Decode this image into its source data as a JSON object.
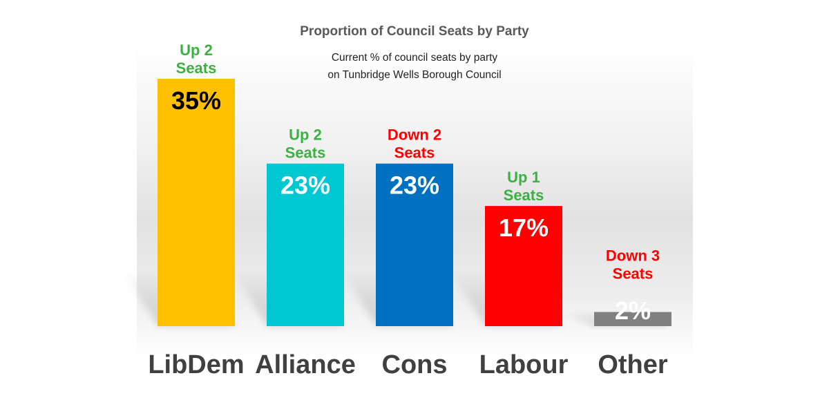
{
  "chart_data": {
    "type": "bar",
    "title": "Proportion of Council Seats by Party",
    "subtitle": [
      "Current % of council seats by party",
      "on Tunbridge Wells Borough Council"
    ],
    "categories": [
      "LibDem",
      "Alliance",
      "Cons",
      "Labour",
      "Other"
    ],
    "values": [
      35,
      23,
      23,
      17,
      2
    ],
    "value_labels": [
      "35%",
      "23%",
      "23%",
      "17%",
      "2%"
    ],
    "bar_colors": [
      "#FFC000",
      "#00C8D2",
      "#0070C0",
      "#FF0000",
      "#808080"
    ],
    "value_label_colors": [
      "#000000",
      "#FFFFFF",
      "#FFFFFF",
      "#FFFFFF",
      "#FFFFFF"
    ],
    "change_labels": [
      [
        "Up 2",
        "Seats"
      ],
      [
        "Up 2",
        "Seats"
      ],
      [
        "Down 2",
        "Seats"
      ],
      [
        "Up 1",
        "Seats"
      ],
      [
        "Down 3",
        "Seats"
      ]
    ],
    "change_colors": [
      "#3CB043",
      "#3CB043",
      "#FF0000",
      "#3CB043",
      "#FF0000"
    ],
    "ylim": [
      0,
      35
    ],
    "grid": false,
    "xlabel": "",
    "ylabel": ""
  }
}
